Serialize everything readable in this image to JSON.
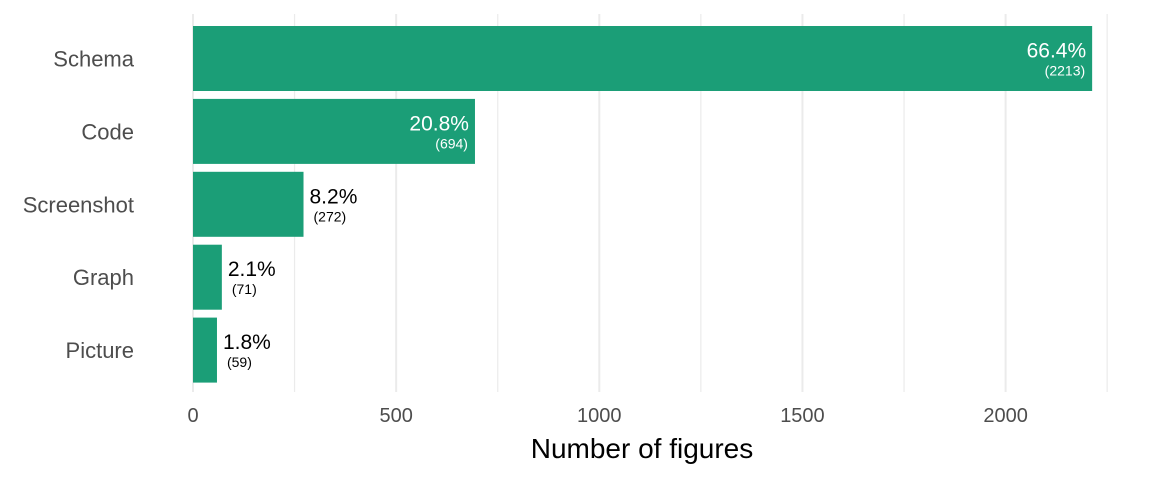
{
  "chart_data": {
    "type": "bar",
    "orientation": "horizontal",
    "categories": [
      "Schema",
      "Code",
      "Screenshot",
      "Graph",
      "Picture"
    ],
    "values": [
      2213,
      694,
      272,
      71,
      59
    ],
    "percent_labels": [
      "66.4%",
      "20.8%",
      "8.2%",
      "2.1%",
      "1.8%"
    ],
    "count_labels": [
      "(2213)",
      "(694)",
      "(272)",
      "(71)",
      "(59)"
    ],
    "xlabel": "Number of figures",
    "ylabel": "",
    "title": "",
    "xlim": [
      0,
      2250
    ],
    "x_ticks": [
      0,
      500,
      1000,
      1500,
      2000
    ],
    "x_tick_labels": [
      "0",
      "500",
      "1000",
      "1500",
      "2000"
    ],
    "grid": true,
    "legend": "none",
    "colors": {
      "bar": "#1b9e77",
      "grid": "#ebebeb",
      "label_inside": "#ffffff",
      "label_outside": "#000000"
    }
  }
}
